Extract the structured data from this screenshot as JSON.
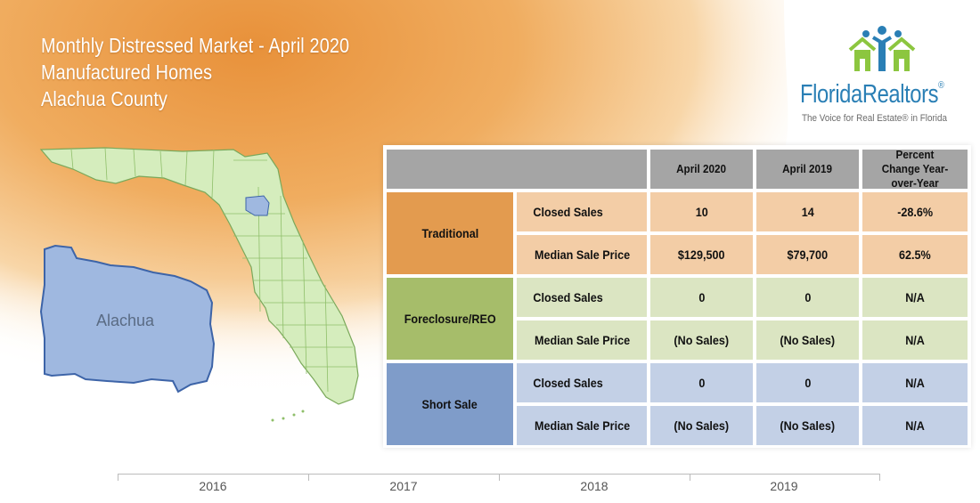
{
  "title": {
    "line1": "Monthly Distressed Market - April 2020",
    "line2": "Manufactured Homes",
    "line3": "Alachua County"
  },
  "logo": {
    "name": "FloridaRealtors",
    "registered": "®",
    "tagline": "The Voice for Real Estate® in Florida",
    "icon": "people-houses-icon"
  },
  "map": {
    "county_label": "Alachua"
  },
  "table": {
    "headers": [
      "April 2020",
      "April 2019",
      "Percent Change Year-over-Year"
    ],
    "groups": [
      {
        "name": "Traditional",
        "rows": [
          {
            "metric": "Closed Sales",
            "current": "10",
            "previous": "14",
            "change": "-28.6%"
          },
          {
            "metric": "Median Sale Price",
            "current": "$129,500",
            "previous": "$79,700",
            "change": "62.5%"
          }
        ]
      },
      {
        "name": "Foreclosure/REO",
        "rows": [
          {
            "metric": "Closed Sales",
            "current": "0",
            "previous": "0",
            "change": "N/A"
          },
          {
            "metric": "Median Sale Price",
            "current": "(No Sales)",
            "previous": "(No Sales)",
            "change": "N/A"
          }
        ]
      },
      {
        "name": "Short Sale",
        "rows": [
          {
            "metric": "Closed Sales",
            "current": "0",
            "previous": "0",
            "change": "N/A"
          },
          {
            "metric": "Median Sale Price",
            "current": "(No Sales)",
            "previous": "(No Sales)",
            "change": "N/A"
          }
        ]
      }
    ]
  },
  "timeline": {
    "years": [
      "2016",
      "2017",
      "2018",
      "2019"
    ]
  },
  "colors": {
    "background_orange": "#e8923a",
    "traditional_group": "#e39b4f",
    "traditional_cell": "#f3cda6",
    "foreclosure_group": "#a6bd6a",
    "foreclosure_cell": "#dbe5c2",
    "short_sale_group": "#7f9cc9",
    "short_sale_cell": "#c3d0e6",
    "header_gray": "#a5a5a5",
    "header_cell": "#d8d8d8",
    "county_fill": "#9fb8e0",
    "state_fill": "#d5edbd",
    "logo_blue": "#2a7fb5",
    "logo_green": "#8cc63f"
  }
}
